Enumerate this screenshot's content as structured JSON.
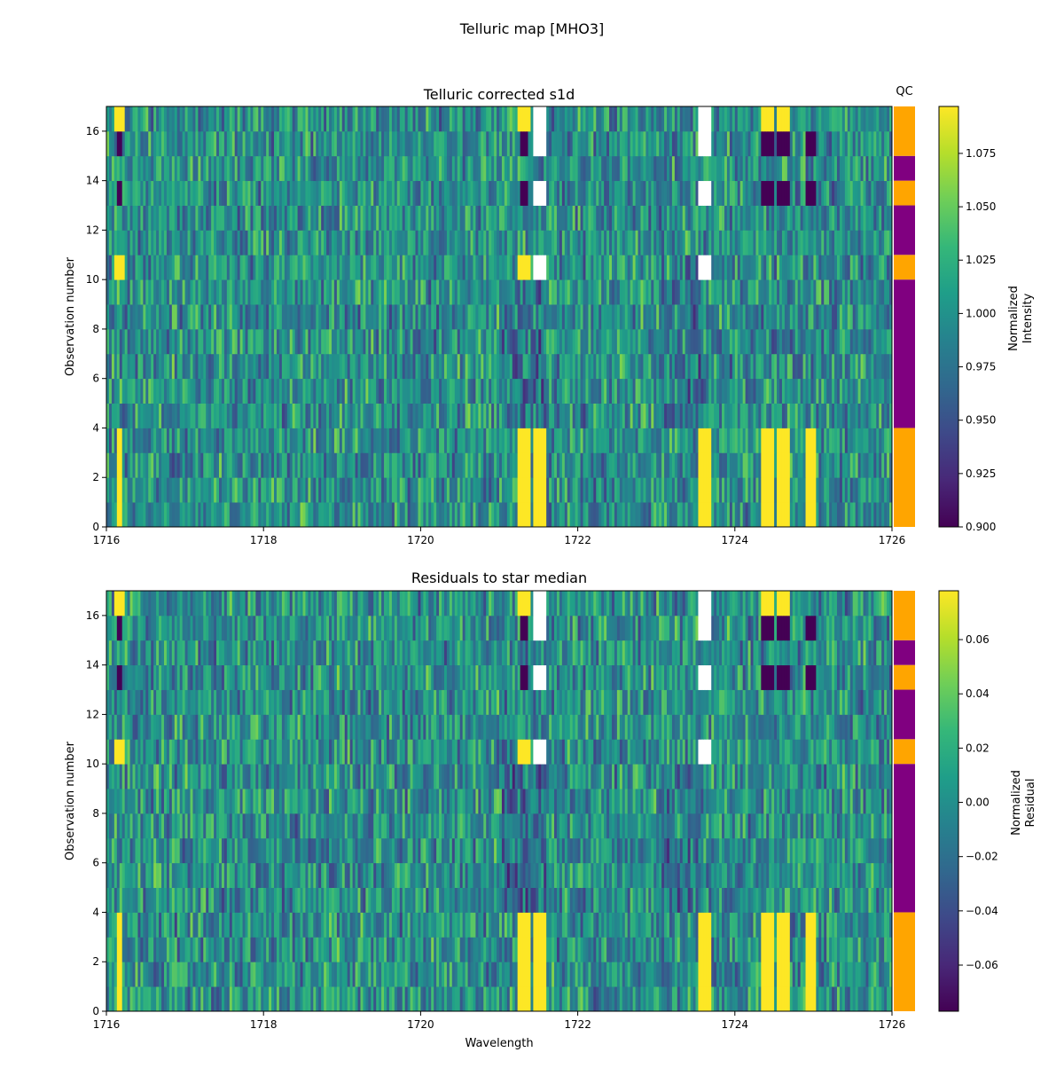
{
  "figure": {
    "title": "Telluric map [MHO3]"
  },
  "colormap": [
    "#440154",
    "#482878",
    "#3e4989",
    "#31688e",
    "#26828e",
    "#1f9e89",
    "#35b779",
    "#6ece58",
    "#b5de2b",
    "#fde725"
  ],
  "qc": {
    "label": "QC",
    "pass_color": "#ffa500",
    "fail_color": "#800080",
    "rows": [
      {
        "from": 0,
        "to": 4,
        "status": "pass"
      },
      {
        "from": 4,
        "to": 10,
        "status": "fail"
      },
      {
        "from": 10,
        "to": 11,
        "status": "pass"
      },
      {
        "from": 11,
        "to": 13,
        "status": "fail"
      },
      {
        "from": 13,
        "to": 14,
        "status": "pass"
      },
      {
        "from": 14,
        "to": 15,
        "status": "fail"
      },
      {
        "from": 15,
        "to": 17,
        "status": "pass"
      }
    ]
  },
  "chart_data": [
    {
      "type": "heatmap",
      "title": "Telluric corrected s1d",
      "xlabel": "",
      "ylabel": "Observation number",
      "xlim": [
        1716,
        1726
      ],
      "ylim": [
        0,
        17
      ],
      "xticks": [
        1716,
        1718,
        1720,
        1722,
        1724,
        1726
      ],
      "yticks": [
        0,
        2,
        4,
        6,
        8,
        10,
        12,
        14,
        16
      ],
      "colorbar": {
        "label_lines": [
          "Normalized",
          "Intensity"
        ],
        "range": [
          0.9,
          1.097
        ],
        "ticks": [
          0.9,
          0.925,
          0.95,
          0.975,
          1.0,
          1.025,
          1.05,
          1.075
        ],
        "tick_labels": [
          "0.900",
          "0.925",
          "0.950",
          "0.975",
          "1.000",
          "1.025",
          "1.050",
          "1.075"
        ]
      },
      "row_values": [
        {
          "from": 0,
          "to": 4,
          "features": [
            [
              1716.15,
              1716.08,
              1.1
            ],
            [
              1721.3,
              1721.15,
              1.1
            ],
            [
              1721.5,
              1721.1,
              1.1
            ],
            [
              1723.6,
              1723.1,
              1.1
            ],
            [
              1724.4,
              1724.05,
              1.1
            ],
            [
              1724.6,
              1724.05,
              1.1
            ],
            [
              1724.95,
              1724.05,
              1.1
            ]
          ]
        },
        {
          "from": 4,
          "to": 10,
          "features": []
        },
        {
          "from": 10,
          "to": 11,
          "features": [
            [
              1716.15,
              1716.03,
              1.1
            ],
            [
              1721.3,
              1721.03,
              1.1
            ],
            [
              1721.5,
              1721.03,
              "gap"
            ],
            [
              1723.6,
              1723.03,
              "gap"
            ]
          ]
        },
        {
          "from": 11,
          "to": 13,
          "features": []
        },
        {
          "from": 13,
          "to": 14,
          "features": [
            [
              1716.15,
              1716.1,
              0.9
            ],
            [
              1721.3,
              1721.2,
              0.9
            ],
            [
              1721.5,
              1721.03,
              "gap"
            ],
            [
              1723.6,
              1723.03,
              "gap"
            ],
            [
              1724.4,
              1724.05,
              0.9
            ],
            [
              1724.6,
              1724.05,
              0.9
            ],
            [
              1724.95,
              1724.05,
              0.9
            ]
          ]
        },
        {
          "from": 14,
          "to": 15,
          "features": []
        },
        {
          "from": 15,
          "to": 16,
          "features": [
            [
              1716.15,
              1716.1,
              0.9
            ],
            [
              1721.3,
              1721.2,
              0.9
            ],
            [
              1721.5,
              1721.03,
              "gap"
            ],
            [
              1723.6,
              1723.03,
              "gap"
            ],
            [
              1724.4,
              1724.05,
              0.9
            ],
            [
              1724.6,
              1724.05,
              0.9
            ],
            [
              1724.95,
              1724.05,
              0.9
            ]
          ]
        },
        {
          "from": 16,
          "to": 17,
          "features": [
            [
              1716.15,
              1716.03,
              1.1
            ],
            [
              1721.3,
              1721.03,
              1.1
            ],
            [
              1721.5,
              1721.03,
              "gap"
            ],
            [
              1723.6,
              1723.03,
              "gap"
            ],
            [
              1724.4,
              1724.03,
              1.1
            ],
            [
              1724.6,
              1724.03,
              1.1
            ]
          ]
        }
      ]
    },
    {
      "type": "heatmap",
      "title": "Residuals to star median",
      "xlabel": "Wavelength",
      "ylabel": "Observation number",
      "xlim": [
        1716,
        1726
      ],
      "ylim": [
        0,
        17
      ],
      "xticks": [
        1716,
        1718,
        1720,
        1722,
        1724,
        1726
      ],
      "yticks": [
        0,
        2,
        4,
        6,
        8,
        10,
        12,
        14,
        16
      ],
      "colorbar": {
        "label_lines": [
          "Normalized",
          "Residual"
        ],
        "range": [
          -0.077,
          0.078
        ],
        "ticks": [
          -0.06,
          -0.04,
          -0.02,
          0.0,
          0.02,
          0.04,
          0.06
        ],
        "tick_labels": [
          "−0.06",
          "−0.04",
          "−0.02",
          "0.00",
          "0.02",
          "0.04",
          "0.06"
        ]
      }
    }
  ]
}
